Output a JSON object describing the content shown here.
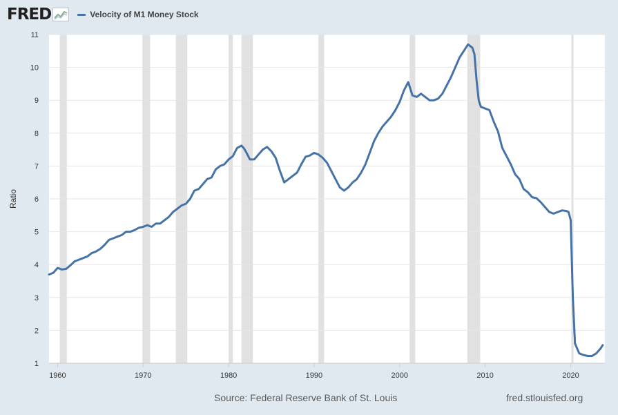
{
  "logo": {
    "text": "FRED",
    "icon": "line-chart-icon"
  },
  "legend": {
    "label": "Velocity of M1 Money Stock",
    "color": "#4572a7"
  },
  "footer": {
    "source": "Source: Federal Reserve Bank of St. Louis",
    "url": "fred.stlouisfed.org"
  },
  "colors": {
    "background": "#e1e9f0",
    "plot": "#ffffff",
    "line": "#4572a7",
    "recession": "#e1e1e1",
    "grid": "#e6e6e6"
  },
  "chart_data": {
    "type": "line",
    "title": "",
    "xlabel": "",
    "ylabel": "Ratio",
    "xlim": [
      1959.0,
      2024.0
    ],
    "ylim": [
      1,
      11
    ],
    "yticks": [
      1,
      2,
      3,
      4,
      5,
      6,
      7,
      8,
      9,
      10,
      11
    ],
    "xticks": [
      1960,
      1970,
      1980,
      1990,
      2000,
      2010,
      2020
    ],
    "grid": true,
    "legend_position": "top",
    "recessions": [
      [
        1960.25,
        1961.08
      ],
      [
        1969.92,
        1970.83
      ],
      [
        1973.83,
        1975.17
      ],
      [
        1980.0,
        1980.5
      ],
      [
        1981.5,
        1982.83
      ],
      [
        1990.5,
        1991.17
      ],
      [
        2001.17,
        2001.83
      ],
      [
        2007.92,
        2009.42
      ],
      [
        2020.08,
        2020.33
      ]
    ],
    "series": [
      {
        "name": "Velocity of M1 Money Stock",
        "x": [
          1959.0,
          1959.5,
          1960.0,
          1960.5,
          1961.0,
          1961.5,
          1962.0,
          1962.5,
          1963.0,
          1963.5,
          1964.0,
          1964.5,
          1965.0,
          1965.5,
          1966.0,
          1966.5,
          1967.0,
          1967.5,
          1968.0,
          1968.5,
          1969.0,
          1969.5,
          1970.0,
          1970.5,
          1971.0,
          1971.5,
          1972.0,
          1972.5,
          1973.0,
          1973.5,
          1974.0,
          1974.5,
          1975.0,
          1975.5,
          1976.0,
          1976.5,
          1977.0,
          1977.5,
          1978.0,
          1978.5,
          1979.0,
          1979.5,
          1980.0,
          1980.5,
          1981.0,
          1981.5,
          1981.75,
          1982.0,
          1982.5,
          1983.0,
          1983.5,
          1984.0,
          1984.5,
          1985.0,
          1985.5,
          1986.0,
          1986.5,
          1987.0,
          1987.5,
          1988.0,
          1988.5,
          1989.0,
          1989.5,
          1990.0,
          1990.5,
          1991.0,
          1991.5,
          1992.0,
          1992.5,
          1993.0,
          1993.5,
          1994.0,
          1994.5,
          1995.0,
          1995.5,
          1996.0,
          1996.5,
          1997.0,
          1997.5,
          1998.0,
          1998.5,
          1999.0,
          1999.5,
          2000.0,
          2000.5,
          2001.0,
          2001.5,
          2002.0,
          2002.5,
          2003.0,
          2003.5,
          2004.0,
          2004.5,
          2005.0,
          2005.5,
          2006.0,
          2006.5,
          2007.0,
          2007.5,
          2008.0,
          2008.25,
          2008.5,
          2008.75,
          2009.0,
          2009.25,
          2009.5,
          2010.0,
          2010.5,
          2011.0,
          2011.5,
          2012.0,
          2012.5,
          2013.0,
          2013.5,
          2014.0,
          2014.5,
          2015.0,
          2015.5,
          2016.0,
          2016.5,
          2017.0,
          2017.5,
          2018.0,
          2018.5,
          2019.0,
          2019.5,
          2019.75,
          2020.0,
          2020.25,
          2020.5,
          2021.0,
          2021.5,
          2022.0,
          2022.5,
          2023.0,
          2023.5,
          2023.75
        ],
        "y": [
          3.7,
          3.75,
          3.9,
          3.85,
          3.87,
          3.98,
          4.1,
          4.15,
          4.2,
          4.25,
          4.35,
          4.4,
          4.48,
          4.6,
          4.75,
          4.8,
          4.85,
          4.9,
          5.0,
          5.0,
          5.05,
          5.12,
          5.15,
          5.2,
          5.15,
          5.25,
          5.25,
          5.35,
          5.45,
          5.6,
          5.7,
          5.8,
          5.85,
          6.0,
          6.25,
          6.3,
          6.45,
          6.6,
          6.65,
          6.9,
          7.0,
          7.05,
          7.2,
          7.3,
          7.55,
          7.62,
          7.55,
          7.45,
          7.2,
          7.2,
          7.35,
          7.5,
          7.58,
          7.45,
          7.25,
          6.85,
          6.5,
          6.6,
          6.7,
          6.8,
          7.05,
          7.28,
          7.32,
          7.4,
          7.35,
          7.25,
          7.1,
          6.85,
          6.6,
          6.35,
          6.25,
          6.35,
          6.5,
          6.6,
          6.8,
          7.05,
          7.4,
          7.75,
          8.0,
          8.2,
          8.35,
          8.5,
          8.7,
          8.95,
          9.3,
          9.55,
          9.15,
          9.1,
          9.2,
          9.1,
          9.0,
          9.0,
          9.05,
          9.2,
          9.45,
          9.7,
          10.0,
          10.3,
          10.5,
          10.7,
          10.65,
          10.6,
          10.4,
          9.6,
          9.0,
          8.8,
          8.75,
          8.7,
          8.35,
          8.05,
          7.55,
          7.3,
          7.05,
          6.75,
          6.6,
          6.3,
          6.2,
          6.05,
          6.02,
          5.9,
          5.75,
          5.6,
          5.55,
          5.6,
          5.65,
          5.63,
          5.6,
          5.35,
          3.0,
          1.6,
          1.3,
          1.25,
          1.22,
          1.22,
          1.3,
          1.45,
          1.55
        ]
      }
    ]
  }
}
